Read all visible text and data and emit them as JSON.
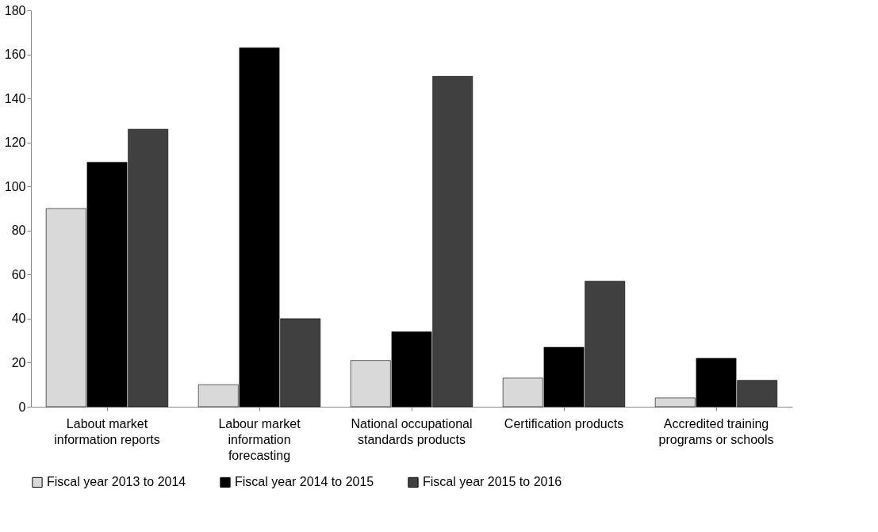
{
  "chart_data": {
    "type": "bar",
    "categories": [
      "Labout market information reports",
      "Labour market information forecasting",
      "National occupational standards products",
      "Certification products",
      "Accredited training programs or schools"
    ],
    "series": [
      {
        "name": "Fiscal year 2013 to 2014",
        "color": "#d9d9d9",
        "values": [
          90,
          10,
          21,
          13,
          4
        ]
      },
      {
        "name": "Fiscal year 2014 to 2015",
        "color": "#000000",
        "values": [
          111,
          163,
          34,
          27,
          22
        ]
      },
      {
        "name": "Fiscal year 2015 to 2016",
        "color": "#404040",
        "values": [
          126,
          40,
          150,
          57,
          12
        ]
      }
    ],
    "ylim": [
      0,
      180
    ],
    "yticks": [
      0,
      20,
      40,
      60,
      80,
      100,
      120,
      140,
      160,
      180
    ],
    "grid": false,
    "legend": "bottom"
  }
}
